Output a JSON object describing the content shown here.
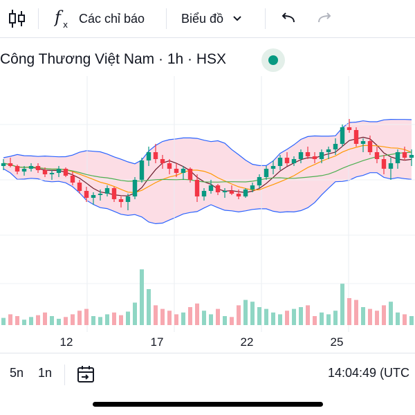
{
  "toolbar": {
    "indicators_label": "Các chỉ báo",
    "chart_type_label": "Biểu đồ"
  },
  "symbol": {
    "title": "Công Thương Việt Nam · 1h · HSX",
    "status_color": "#089981"
  },
  "chart_data": {
    "type": "candlestick",
    "x_tick_labels": [
      "12",
      "17",
      "22",
      "25"
    ],
    "colors": {
      "up": "#089981",
      "down": "#f23645",
      "up_volume": "#8fd6c4",
      "down_volume": "#f7a8b0"
    },
    "indicators": [
      "Bollinger Bands",
      "Moving averages",
      "Volume"
    ],
    "y_range": [
      0,
      100
    ],
    "ohlc": [
      [
        50,
        55,
        47,
        52
      ],
      [
        52,
        56,
        49,
        50
      ],
      [
        50,
        51,
        44,
        46
      ],
      [
        46,
        50,
        43,
        48
      ],
      [
        48,
        52,
        46,
        50
      ],
      [
        50,
        52,
        45,
        47
      ],
      [
        47,
        49,
        42,
        44
      ],
      [
        44,
        47,
        40,
        45
      ],
      [
        45,
        50,
        42,
        48
      ],
      [
        48,
        49,
        42,
        43
      ],
      [
        43,
        46,
        36,
        38
      ],
      [
        38,
        40,
        30,
        32
      ],
      [
        32,
        35,
        24,
        27
      ],
      [
        27,
        31,
        22,
        29
      ],
      [
        29,
        33,
        25,
        30
      ],
      [
        30,
        36,
        28,
        34
      ],
      [
        34,
        35,
        24,
        26
      ],
      [
        26,
        28,
        20,
        24
      ],
      [
        24,
        30,
        18,
        28
      ],
      [
        28,
        42,
        26,
        40
      ],
      [
        40,
        56,
        38,
        54
      ],
      [
        54,
        64,
        50,
        60
      ],
      [
        60,
        66,
        52,
        55
      ],
      [
        55,
        58,
        48,
        52
      ],
      [
        52,
        55,
        44,
        48
      ],
      [
        48,
        52,
        42,
        45
      ],
      [
        45,
        50,
        40,
        48
      ],
      [
        48,
        49,
        38,
        40
      ],
      [
        40,
        44,
        24,
        28
      ],
      [
        28,
        34,
        25,
        32
      ],
      [
        32,
        40,
        30,
        36
      ],
      [
        36,
        37,
        29,
        31
      ],
      [
        31,
        34,
        27,
        32
      ],
      [
        32,
        36,
        29,
        30
      ],
      [
        30,
        33,
        26,
        28
      ],
      [
        28,
        34,
        27,
        33
      ],
      [
        33,
        38,
        31,
        36
      ],
      [
        36,
        44,
        34,
        42
      ],
      [
        42,
        50,
        40,
        48
      ],
      [
        48,
        54,
        44,
        50
      ],
      [
        50,
        58,
        47,
        56
      ],
      [
        56,
        60,
        50,
        52
      ],
      [
        52,
        57,
        50,
        55
      ],
      [
        55,
        62,
        52,
        60
      ],
      [
        60,
        64,
        55,
        57
      ],
      [
        57,
        60,
        52,
        55
      ],
      [
        55,
        62,
        52,
        60
      ],
      [
        60,
        64,
        55,
        62
      ],
      [
        62,
        70,
        58,
        66
      ],
      [
        66,
        80,
        64,
        78
      ],
      [
        78,
        84,
        74,
        76
      ],
      [
        76,
        78,
        64,
        66
      ],
      [
        66,
        70,
        60,
        68
      ],
      [
        68,
        72,
        58,
        60
      ],
      [
        60,
        64,
        52,
        55
      ],
      [
        55,
        58,
        44,
        48
      ],
      [
        48,
        56,
        40,
        52
      ],
      [
        52,
        62,
        48,
        60
      ],
      [
        60,
        64,
        54,
        56
      ],
      [
        56,
        62,
        50,
        58
      ]
    ],
    "volume": [
      8,
      12,
      10,
      6,
      9,
      11,
      14,
      10,
      7,
      9,
      12,
      16,
      18,
      10,
      9,
      12,
      14,
      11,
      15,
      25,
      62,
      40,
      22,
      18,
      16,
      12,
      14,
      20,
      24,
      16,
      12,
      18,
      10,
      9,
      22,
      28,
      26,
      20,
      18,
      14,
      12,
      16,
      18,
      20,
      22,
      10,
      14,
      12,
      16,
      46,
      30,
      28,
      20,
      18,
      16,
      22,
      26,
      14,
      12,
      10
    ]
  },
  "timeframes": [
    "5n",
    "1n"
  ],
  "clock": "14:04:49 (UTC"
}
